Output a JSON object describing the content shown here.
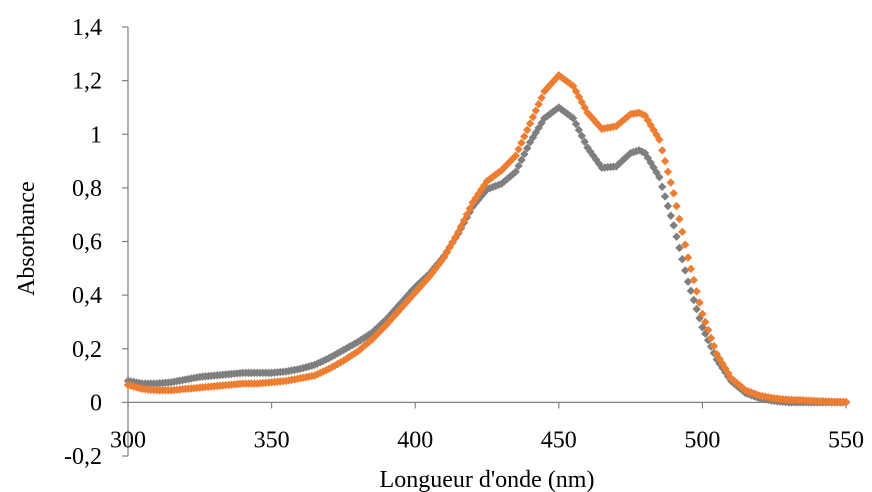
{
  "chart_data": {
    "type": "scatter",
    "title": "",
    "xlabel": "Longueur d'onde (nm)",
    "ylabel": "Absorbance",
    "xlim": [
      300,
      550
    ],
    "ylim": [
      -0.2,
      1.4
    ],
    "xticks": [
      300,
      350,
      400,
      450,
      500,
      550
    ],
    "yticks": [
      -0.2,
      0,
      0.2,
      0.4,
      0.6,
      0.8,
      1,
      1.2,
      1.4
    ],
    "ytick_labels": [
      "-0,2",
      "0",
      "0,2",
      "0,4",
      "0,6",
      "0,8",
      "1",
      "1,2",
      "1,4"
    ],
    "xtick_labels": [
      "300",
      "350",
      "400",
      "450",
      "500",
      "550"
    ],
    "grid": false,
    "legend": "none",
    "marker_style": "small diamonds forming continuous curve",
    "series": [
      {
        "color": "#7f7f7f",
        "points": [
          [
            300,
            0.08
          ],
          [
            305,
            0.07
          ],
          [
            310,
            0.07
          ],
          [
            315,
            0.075
          ],
          [
            320,
            0.085
          ],
          [
            325,
            0.095
          ],
          [
            330,
            0.1
          ],
          [
            335,
            0.105
          ],
          [
            340,
            0.11
          ],
          [
            345,
            0.11
          ],
          [
            350,
            0.11
          ],
          [
            355,
            0.115
          ],
          [
            360,
            0.125
          ],
          [
            365,
            0.14
          ],
          [
            370,
            0.165
          ],
          [
            375,
            0.195
          ],
          [
            380,
            0.225
          ],
          [
            385,
            0.26
          ],
          [
            390,
            0.31
          ],
          [
            395,
            0.37
          ],
          [
            400,
            0.43
          ],
          [
            405,
            0.48
          ],
          [
            410,
            0.545
          ],
          [
            415,
            0.63
          ],
          [
            420,
            0.73
          ],
          [
            425,
            0.795
          ],
          [
            430,
            0.815
          ],
          [
            435,
            0.86
          ],
          [
            440,
            0.97
          ],
          [
            445,
            1.06
          ],
          [
            450,
            1.1
          ],
          [
            455,
            1.06
          ],
          [
            460,
            0.95
          ],
          [
            465,
            0.875
          ],
          [
            470,
            0.88
          ],
          [
            475,
            0.93
          ],
          [
            478,
            0.94
          ],
          [
            480,
            0.93
          ],
          [
            485,
            0.84
          ],
          [
            490,
            0.66
          ],
          [
            495,
            0.45
          ],
          [
            500,
            0.28
          ],
          [
            505,
            0.16
          ],
          [
            510,
            0.08
          ],
          [
            515,
            0.035
          ],
          [
            520,
            0.015
          ],
          [
            525,
            0.005
          ],
          [
            530,
            0.0
          ],
          [
            535,
            0.0
          ],
          [
            540,
            0.0
          ],
          [
            545,
            0.0
          ],
          [
            550,
            0.0
          ]
        ]
      },
      {
        "color": "#ed7d31",
        "points": [
          [
            300,
            0.065
          ],
          [
            305,
            0.05
          ],
          [
            310,
            0.045
          ],
          [
            315,
            0.045
          ],
          [
            320,
            0.05
          ],
          [
            325,
            0.055
          ],
          [
            330,
            0.06
          ],
          [
            335,
            0.065
          ],
          [
            340,
            0.07
          ],
          [
            345,
            0.07
          ],
          [
            350,
            0.075
          ],
          [
            355,
            0.08
          ],
          [
            360,
            0.09
          ],
          [
            365,
            0.1
          ],
          [
            370,
            0.125
          ],
          [
            375,
            0.155
          ],
          [
            380,
            0.19
          ],
          [
            385,
            0.235
          ],
          [
            390,
            0.29
          ],
          [
            395,
            0.35
          ],
          [
            400,
            0.41
          ],
          [
            405,
            0.47
          ],
          [
            410,
            0.54
          ],
          [
            415,
            0.635
          ],
          [
            420,
            0.745
          ],
          [
            425,
            0.825
          ],
          [
            430,
            0.865
          ],
          [
            435,
            0.92
          ],
          [
            440,
            1.04
          ],
          [
            445,
            1.16
          ],
          [
            450,
            1.22
          ],
          [
            455,
            1.18
          ],
          [
            460,
            1.08
          ],
          [
            465,
            1.02
          ],
          [
            470,
            1.03
          ],
          [
            475,
            1.075
          ],
          [
            478,
            1.08
          ],
          [
            480,
            1.07
          ],
          [
            485,
            0.98
          ],
          [
            490,
            0.78
          ],
          [
            495,
            0.54
          ],
          [
            500,
            0.33
          ],
          [
            505,
            0.18
          ],
          [
            510,
            0.09
          ],
          [
            515,
            0.045
          ],
          [
            520,
            0.025
          ],
          [
            525,
            0.015
          ],
          [
            530,
            0.01
          ],
          [
            535,
            0.008
          ],
          [
            540,
            0.005
          ],
          [
            545,
            0.003
          ],
          [
            550,
            0.002
          ]
        ]
      }
    ]
  }
}
